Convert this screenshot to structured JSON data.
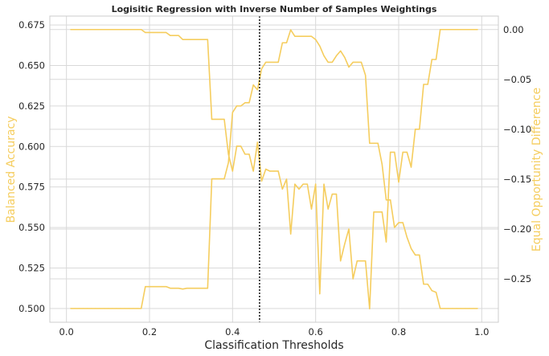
{
  "chart_data": {
    "type": "line",
    "title": "Logisitic Regression with Inverse Number of Samples Weightings",
    "xlabel": "Classification Thresholds",
    "ylabel_left": "Balanced Accuracy",
    "ylabel_right": "Equal Opportunity Difference",
    "xlim": [
      -0.04,
      1.04
    ],
    "ylim_left": [
      0.4915,
      0.6805
    ],
    "ylim_right": [
      -0.2935,
      0.0135
    ],
    "x_ticks": [
      0.0,
      0.2,
      0.4,
      0.6,
      0.8,
      1.0
    ],
    "x_tick_labels": [
      "0.0",
      "0.2",
      "0.4",
      "0.6",
      "0.8",
      "1.0"
    ],
    "y_left_ticks": [
      0.5,
      0.525,
      0.55,
      0.575,
      0.6,
      0.625,
      0.65,
      0.675
    ],
    "y_left_tick_labels": [
      "0.500",
      "0.525",
      "0.550",
      "0.575",
      "0.600",
      "0.625",
      "0.650",
      "0.675"
    ],
    "y_right_ticks": [
      0.0,
      -0.05,
      -0.1,
      -0.15,
      -0.2,
      -0.25
    ],
    "y_right_tick_labels": [
      "0.00",
      "−0.05",
      "−0.10",
      "−0.15",
      "−0.20",
      "−0.25"
    ],
    "grid": true,
    "line_color": "#f5cd5e",
    "label_color": "#f5cd5e",
    "vline": {
      "x": 0.465,
      "style": "dotted",
      "color": "#000000"
    },
    "series": [
      {
        "axis": "left",
        "x": [
          0.01,
          0.02,
          0.03,
          0.04,
          0.05,
          0.06,
          0.07,
          0.08,
          0.09,
          0.1,
          0.11,
          0.12,
          0.13,
          0.14,
          0.15,
          0.16,
          0.17,
          0.18,
          0.19,
          0.2,
          0.21,
          0.22,
          0.23,
          0.24,
          0.25,
          0.26,
          0.27,
          0.28,
          0.29,
          0.3,
          0.31,
          0.32,
          0.33,
          0.34,
          0.35,
          0.36,
          0.37,
          0.38,
          0.39,
          0.4,
          0.41,
          0.42,
          0.43,
          0.44,
          0.45,
          0.46,
          0.47,
          0.48,
          0.49,
          0.5,
          0.51,
          0.52,
          0.53,
          0.54,
          0.55,
          0.56,
          0.57,
          0.58,
          0.59,
          0.6,
          0.61,
          0.62,
          0.63,
          0.64,
          0.65,
          0.66,
          0.67,
          0.68,
          0.69,
          0.7,
          0.71,
          0.72,
          0.73,
          0.74,
          0.75,
          0.76,
          0.77,
          0.78,
          0.79,
          0.8,
          0.81,
          0.82,
          0.83,
          0.84,
          0.85,
          0.86,
          0.87,
          0.88,
          0.89,
          0.9,
          0.91,
          0.92,
          0.93,
          0.94,
          0.95,
          0.96,
          0.97,
          0.98,
          0.99
        ],
        "y": [
          0.5,
          0.5,
          0.5,
          0.5,
          0.5,
          0.5,
          0.5,
          0.5,
          0.5,
          0.5,
          0.5,
          0.5,
          0.5,
          0.5,
          0.5,
          0.5,
          0.5,
          0.5,
          0.5135,
          0.5135,
          0.5135,
          0.5135,
          0.5135,
          0.5135,
          0.5125,
          0.5125,
          0.5125,
          0.512,
          0.5125,
          0.5125,
          0.5125,
          0.5125,
          0.5125,
          0.5125,
          0.58,
          0.58,
          0.58,
          0.58,
          0.59,
          0.621,
          0.625,
          0.625,
          0.627,
          0.627,
          0.638,
          0.635,
          0.648,
          0.652,
          0.652,
          0.652,
          0.652,
          0.664,
          0.664,
          0.672,
          0.668,
          0.668,
          0.668,
          0.668,
          0.668,
          0.666,
          0.662,
          0.656,
          0.652,
          0.652,
          0.656,
          0.659,
          0.655,
          0.649,
          0.652,
          0.652,
          0.652,
          0.644,
          0.602,
          0.602,
          0.602,
          0.589,
          0.567,
          0.567,
          0.55,
          0.553,
          0.553,
          0.544,
          0.537,
          0.533,
          0.533,
          0.515,
          0.515,
          0.511,
          0.51,
          0.5,
          0.5,
          0.5,
          0.5,
          0.5,
          0.5,
          0.5,
          0.5,
          0.5,
          0.5
        ]
      },
      {
        "axis": "right",
        "x": [
          0.01,
          0.02,
          0.03,
          0.04,
          0.05,
          0.06,
          0.07,
          0.08,
          0.09,
          0.1,
          0.11,
          0.12,
          0.13,
          0.14,
          0.15,
          0.16,
          0.17,
          0.18,
          0.19,
          0.2,
          0.21,
          0.22,
          0.23,
          0.24,
          0.25,
          0.26,
          0.27,
          0.28,
          0.29,
          0.3,
          0.31,
          0.32,
          0.33,
          0.34,
          0.35,
          0.36,
          0.37,
          0.38,
          0.39,
          0.4,
          0.41,
          0.42,
          0.43,
          0.44,
          0.45,
          0.46,
          0.47,
          0.48,
          0.49,
          0.5,
          0.51,
          0.52,
          0.53,
          0.54,
          0.55,
          0.56,
          0.57,
          0.58,
          0.59,
          0.6,
          0.61,
          0.62,
          0.63,
          0.64,
          0.65,
          0.66,
          0.67,
          0.68,
          0.69,
          0.7,
          0.71,
          0.72,
          0.73,
          0.74,
          0.75,
          0.76,
          0.77,
          0.78,
          0.79,
          0.8,
          0.81,
          0.82,
          0.83,
          0.84,
          0.85,
          0.86,
          0.87,
          0.88,
          0.89,
          0.9,
          0.91,
          0.92,
          0.93,
          0.94,
          0.95,
          0.96,
          0.97,
          0.98,
          0.99
        ],
        "y": [
          0.0,
          0.0,
          0.0,
          0.0,
          0.0,
          0.0,
          0.0,
          0.0,
          0.0,
          0.0,
          0.0,
          0.0,
          0.0,
          0.0,
          0.0,
          0.0,
          0.0,
          0.0,
          -0.003,
          -0.003,
          -0.003,
          -0.003,
          -0.003,
          -0.003,
          -0.006,
          -0.006,
          -0.006,
          -0.01,
          -0.01,
          -0.01,
          -0.01,
          -0.01,
          -0.01,
          -0.01,
          -0.09,
          -0.09,
          -0.09,
          -0.09,
          -0.125,
          -0.142,
          -0.117,
          -0.117,
          -0.125,
          -0.125,
          -0.142,
          -0.113,
          -0.152,
          -0.14,
          -0.142,
          -0.142,
          -0.142,
          -0.16,
          -0.15,
          -0.205,
          -0.155,
          -0.16,
          -0.155,
          -0.155,
          -0.18,
          -0.155,
          -0.265,
          -0.155,
          -0.18,
          -0.165,
          -0.165,
          -0.232,
          -0.215,
          -0.2,
          -0.25,
          -0.232,
          -0.232,
          -0.232,
          -0.28,
          -0.183,
          -0.183,
          -0.183,
          -0.213,
          -0.123,
          -0.123,
          -0.153,
          -0.123,
          -0.123,
          -0.138,
          -0.1,
          -0.1,
          -0.055,
          -0.055,
          -0.03,
          -0.03,
          0.0,
          0.0,
          0.0,
          0.0,
          0.0,
          0.0,
          0.0,
          0.0,
          0.0,
          0.0
        ]
      }
    ]
  }
}
